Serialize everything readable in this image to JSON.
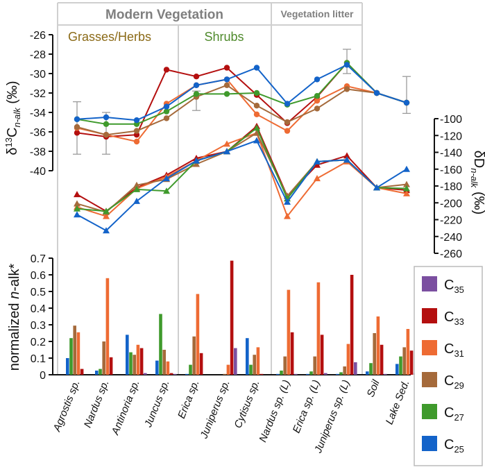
{
  "chart_data": {
    "type": "line",
    "categories": [
      "Agrostis sp.",
      "Nardus sp.",
      "Antinoria sp.",
      "Juncus sp.",
      "Erica sp.",
      "Juniperus sp.",
      "Cytisus sp.",
      "Nardus sp. (L)",
      "Erica sp. (L)",
      "Juniperus sp. (L)",
      "Soil",
      "Lake Sed."
    ],
    "sections": {
      "modern": "Modern Vegetation",
      "litter": "Vegetation litter",
      "grasses": "Grasses/Herbs",
      "shrubs": "Shrubs"
    },
    "series_names": [
      "C35",
      "C33",
      "C31",
      "C29",
      "C27",
      "C25"
    ],
    "legend": [
      {
        "key": "C35",
        "base": "C",
        "sub": "35",
        "color": "#7b4fa0"
      },
      {
        "key": "C33",
        "base": "C",
        "sub": "33",
        "color": "#b40f0f"
      },
      {
        "key": "C31",
        "base": "C",
        "sub": "31",
        "color": "#ee6b33"
      },
      {
        "key": "C29",
        "base": "C",
        "sub": "29",
        "color": "#a56a3b"
      },
      {
        "key": "C27",
        "base": "C",
        "sub": "27",
        "color": "#3f9a2c"
      },
      {
        "key": "C25",
        "base": "C",
        "sub": "25",
        "color": "#1363c9"
      }
    ],
    "d13C": {
      "ylabel_main": "δ",
      "ylabel_sup": "13",
      "ylabel_c": "C",
      "ylabel_sub": "n-alk",
      "ylabel_unit": " (‰)",
      "ylim": [
        -40,
        -26
      ],
      "ticks": [
        "-26",
        "-28",
        "-30",
        "-32",
        "-34",
        "-36",
        "-38",
        "-40"
      ],
      "series": [
        {
          "name": "C33",
          "values": [
            -36.1,
            -36.5,
            -36.3,
            -29.6,
            -30.3,
            -29.4,
            -32.2,
            -35.1,
            -32.4,
            -28.9,
            -32.0,
            -33.0
          ]
        },
        {
          "name": "C31",
          "values": [
            -35.6,
            -36.3,
            -37.0,
            -33.1,
            -31.2,
            -30.6,
            -34.2,
            -35.9,
            -32.8,
            -31.3,
            -32.0,
            -33.0
          ]
        },
        {
          "name": "C29",
          "values": [
            -35.5,
            -36.3,
            -35.9,
            -34.6,
            -32.4,
            -31.2,
            -33.3,
            -35.0,
            -33.6,
            -31.6,
            -32.0,
            -33.0
          ]
        },
        {
          "name": "C27",
          "values": [
            -34.7,
            -35.2,
            -35.2,
            -33.9,
            -32.1,
            -32.1,
            -32.0,
            -33.2,
            -32.3,
            -28.9,
            -32.0,
            -33.0
          ]
        },
        {
          "name": "C25",
          "values": [
            -34.7,
            -34.5,
            -34.8,
            -33.4,
            -31.2,
            -30.6,
            -29.4,
            -33.1,
            -30.6,
            -29.1,
            -32.0,
            -33.0
          ]
        }
      ],
      "errorbars": [
        {
          "index": 0,
          "low": -38.3,
          "high": -32.9
        },
        {
          "index": 1,
          "low": -38.3,
          "high": -34.0
        },
        {
          "index": 4,
          "low": -33.8,
          "high": -31.8
        },
        {
          "index": 9,
          "low": -30.0,
          "high": -27.5
        },
        {
          "index": 11,
          "low": -34.1,
          "high": -30.3
        }
      ]
    },
    "dD": {
      "ylabel_main": "δD",
      "ylabel_sub": "n-alk",
      "ylabel_unit": " (‰)",
      "ylim": [
        -260,
        -100
      ],
      "ticks": [
        "-100",
        "-120",
        "-140",
        "-160",
        "-180",
        "-200",
        "-220",
        "-240",
        "-260"
      ],
      "series": [
        {
          "name": "C33",
          "values": [
            -190,
            -210,
            -182,
            -167,
            -147,
            -139,
            -109,
            -192,
            -155,
            -144,
            -182,
            -185
          ]
        },
        {
          "name": "C31",
          "values": [
            -205,
            -216,
            -183,
            -169,
            -150,
            -130,
            -117,
            -216,
            -171,
            -151,
            -182,
            -189
          ]
        },
        {
          "name": "C29",
          "values": [
            -201,
            -211,
            -179,
            -172,
            -154,
            -139,
            -117,
            -192,
            -151,
            -149,
            -182,
            -178
          ]
        },
        {
          "name": "C27",
          "values": [
            -207,
            -210,
            -184,
            -186,
            -150,
            -139,
            -111,
            -195,
            -151,
            -149,
            -182,
            -183
          ]
        },
        {
          "name": "C25",
          "values": [
            -214,
            -233,
            -198,
            -171,
            -150,
            -139,
            -126,
            -199,
            -151,
            -149,
            -182,
            -160
          ]
        }
      ]
    },
    "norm": {
      "ylabel_main": "normalized ",
      "ylabel_ital": "n",
      "ylabel_rest": "-alk*",
      "ylim": [
        0,
        0.7
      ],
      "ticks": [
        "0.7",
        "0.6",
        "0.5",
        "0.4",
        "0.3",
        "0.2",
        "0.1",
        "0"
      ],
      "series": [
        {
          "name": "C25",
          "values": [
            0.1,
            0.025,
            0.24,
            0.085,
            0.005,
            0.0,
            0.22,
            0.005,
            0.005,
            0.005,
            0.02,
            0.065
          ]
        },
        {
          "name": "C27",
          "values": [
            0.22,
            0.035,
            0.135,
            0.365,
            0.06,
            0.0,
            0.06,
            0.025,
            0.02,
            0.015,
            0.07,
            0.11
          ]
        },
        {
          "name": "C29",
          "values": [
            0.295,
            0.2,
            0.12,
            0.15,
            0.23,
            0.005,
            0.12,
            0.11,
            0.11,
            0.05,
            0.25,
            0.165
          ]
        },
        {
          "name": "C31",
          "values": [
            0.255,
            0.58,
            0.18,
            0.08,
            0.485,
            0.06,
            0.165,
            0.51,
            0.555,
            0.185,
            0.35,
            0.275
          ]
        },
        {
          "name": "C33",
          "values": [
            0.035,
            0.105,
            0.16,
            0.01,
            0.13,
            0.685,
            0.005,
            0.255,
            0.24,
            0.6,
            0.18,
            0.145
          ]
        },
        {
          "name": "C35",
          "values": [
            0.0,
            0.0,
            0.01,
            0.005,
            0.0,
            0.16,
            0.0,
            0.005,
            0.01,
            0.075,
            0.005,
            0.01
          ]
        }
      ]
    }
  }
}
